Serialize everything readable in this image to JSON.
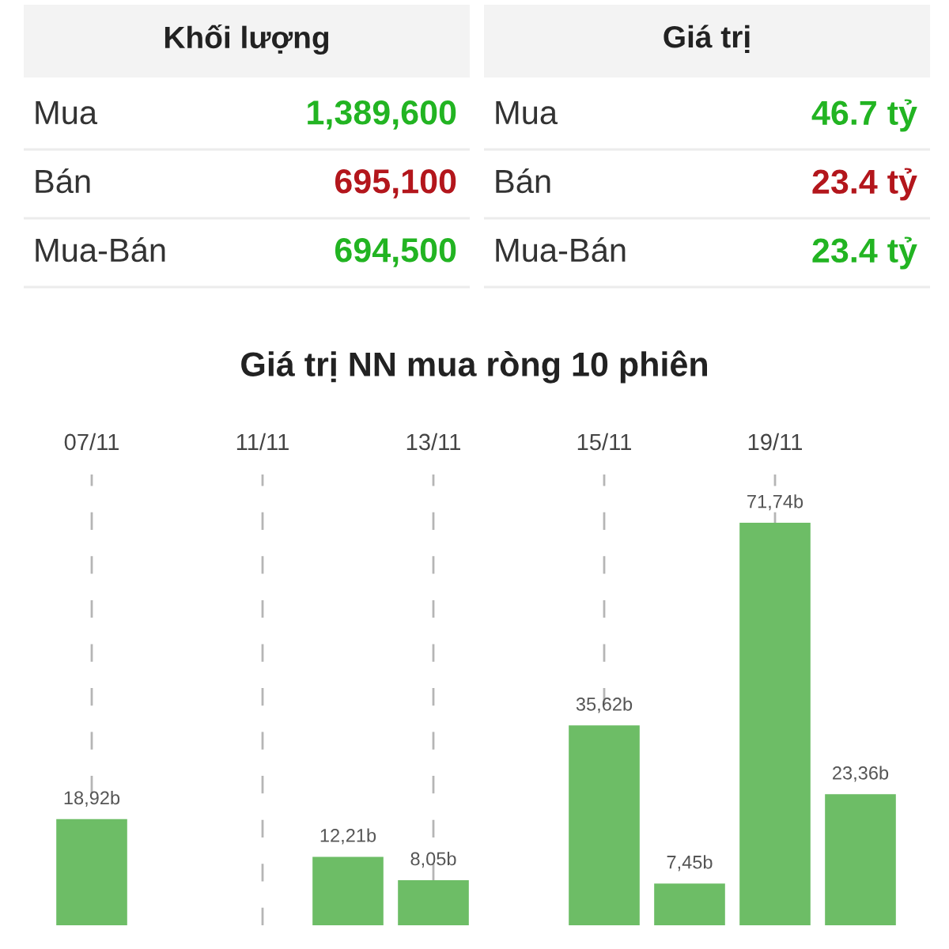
{
  "chart_data": [
    {
      "type": "other",
      "title": "Khối lượng",
      "categories": [
        "Mua",
        "Bán",
        "Mua-Bán"
      ],
      "values": [
        1389600,
        695100,
        694500
      ],
      "value_labels": [
        "1,389,600",
        "695,100",
        "694,500"
      ],
      "colors": [
        "#22b422",
        "#b3161c",
        "#22b422"
      ]
    },
    {
      "type": "other",
      "title": "Giá trị",
      "categories": [
        "Mua",
        "Bán",
        "Mua-Bán"
      ],
      "values": [
        46.7,
        23.4,
        23.4
      ],
      "value_labels": [
        "46.7 tỷ",
        "23.4 tỷ",
        "23.4 tỷ"
      ],
      "colors": [
        "#22b422",
        "#b3161c",
        "#22b422"
      ]
    },
    {
      "type": "bar",
      "title": "Giá trị NN mua ròng 10 phiên",
      "categories": [
        "07/11",
        null,
        "11/11",
        null,
        "13/11",
        null,
        "15/11",
        null,
        "19/11",
        null
      ],
      "values": [
        18.92,
        null,
        null,
        12.21,
        8.05,
        null,
        35.62,
        7.45,
        71.74,
        23.36
      ],
      "value_labels": [
        "18,92b",
        null,
        null,
        "12,21b",
        "8,05b",
        null,
        "35,62b",
        "7,45b",
        "71,74b",
        "23,36b"
      ],
      "color": "#6dbd66",
      "grid": "x",
      "tick_labels": "x"
    }
  ]
}
